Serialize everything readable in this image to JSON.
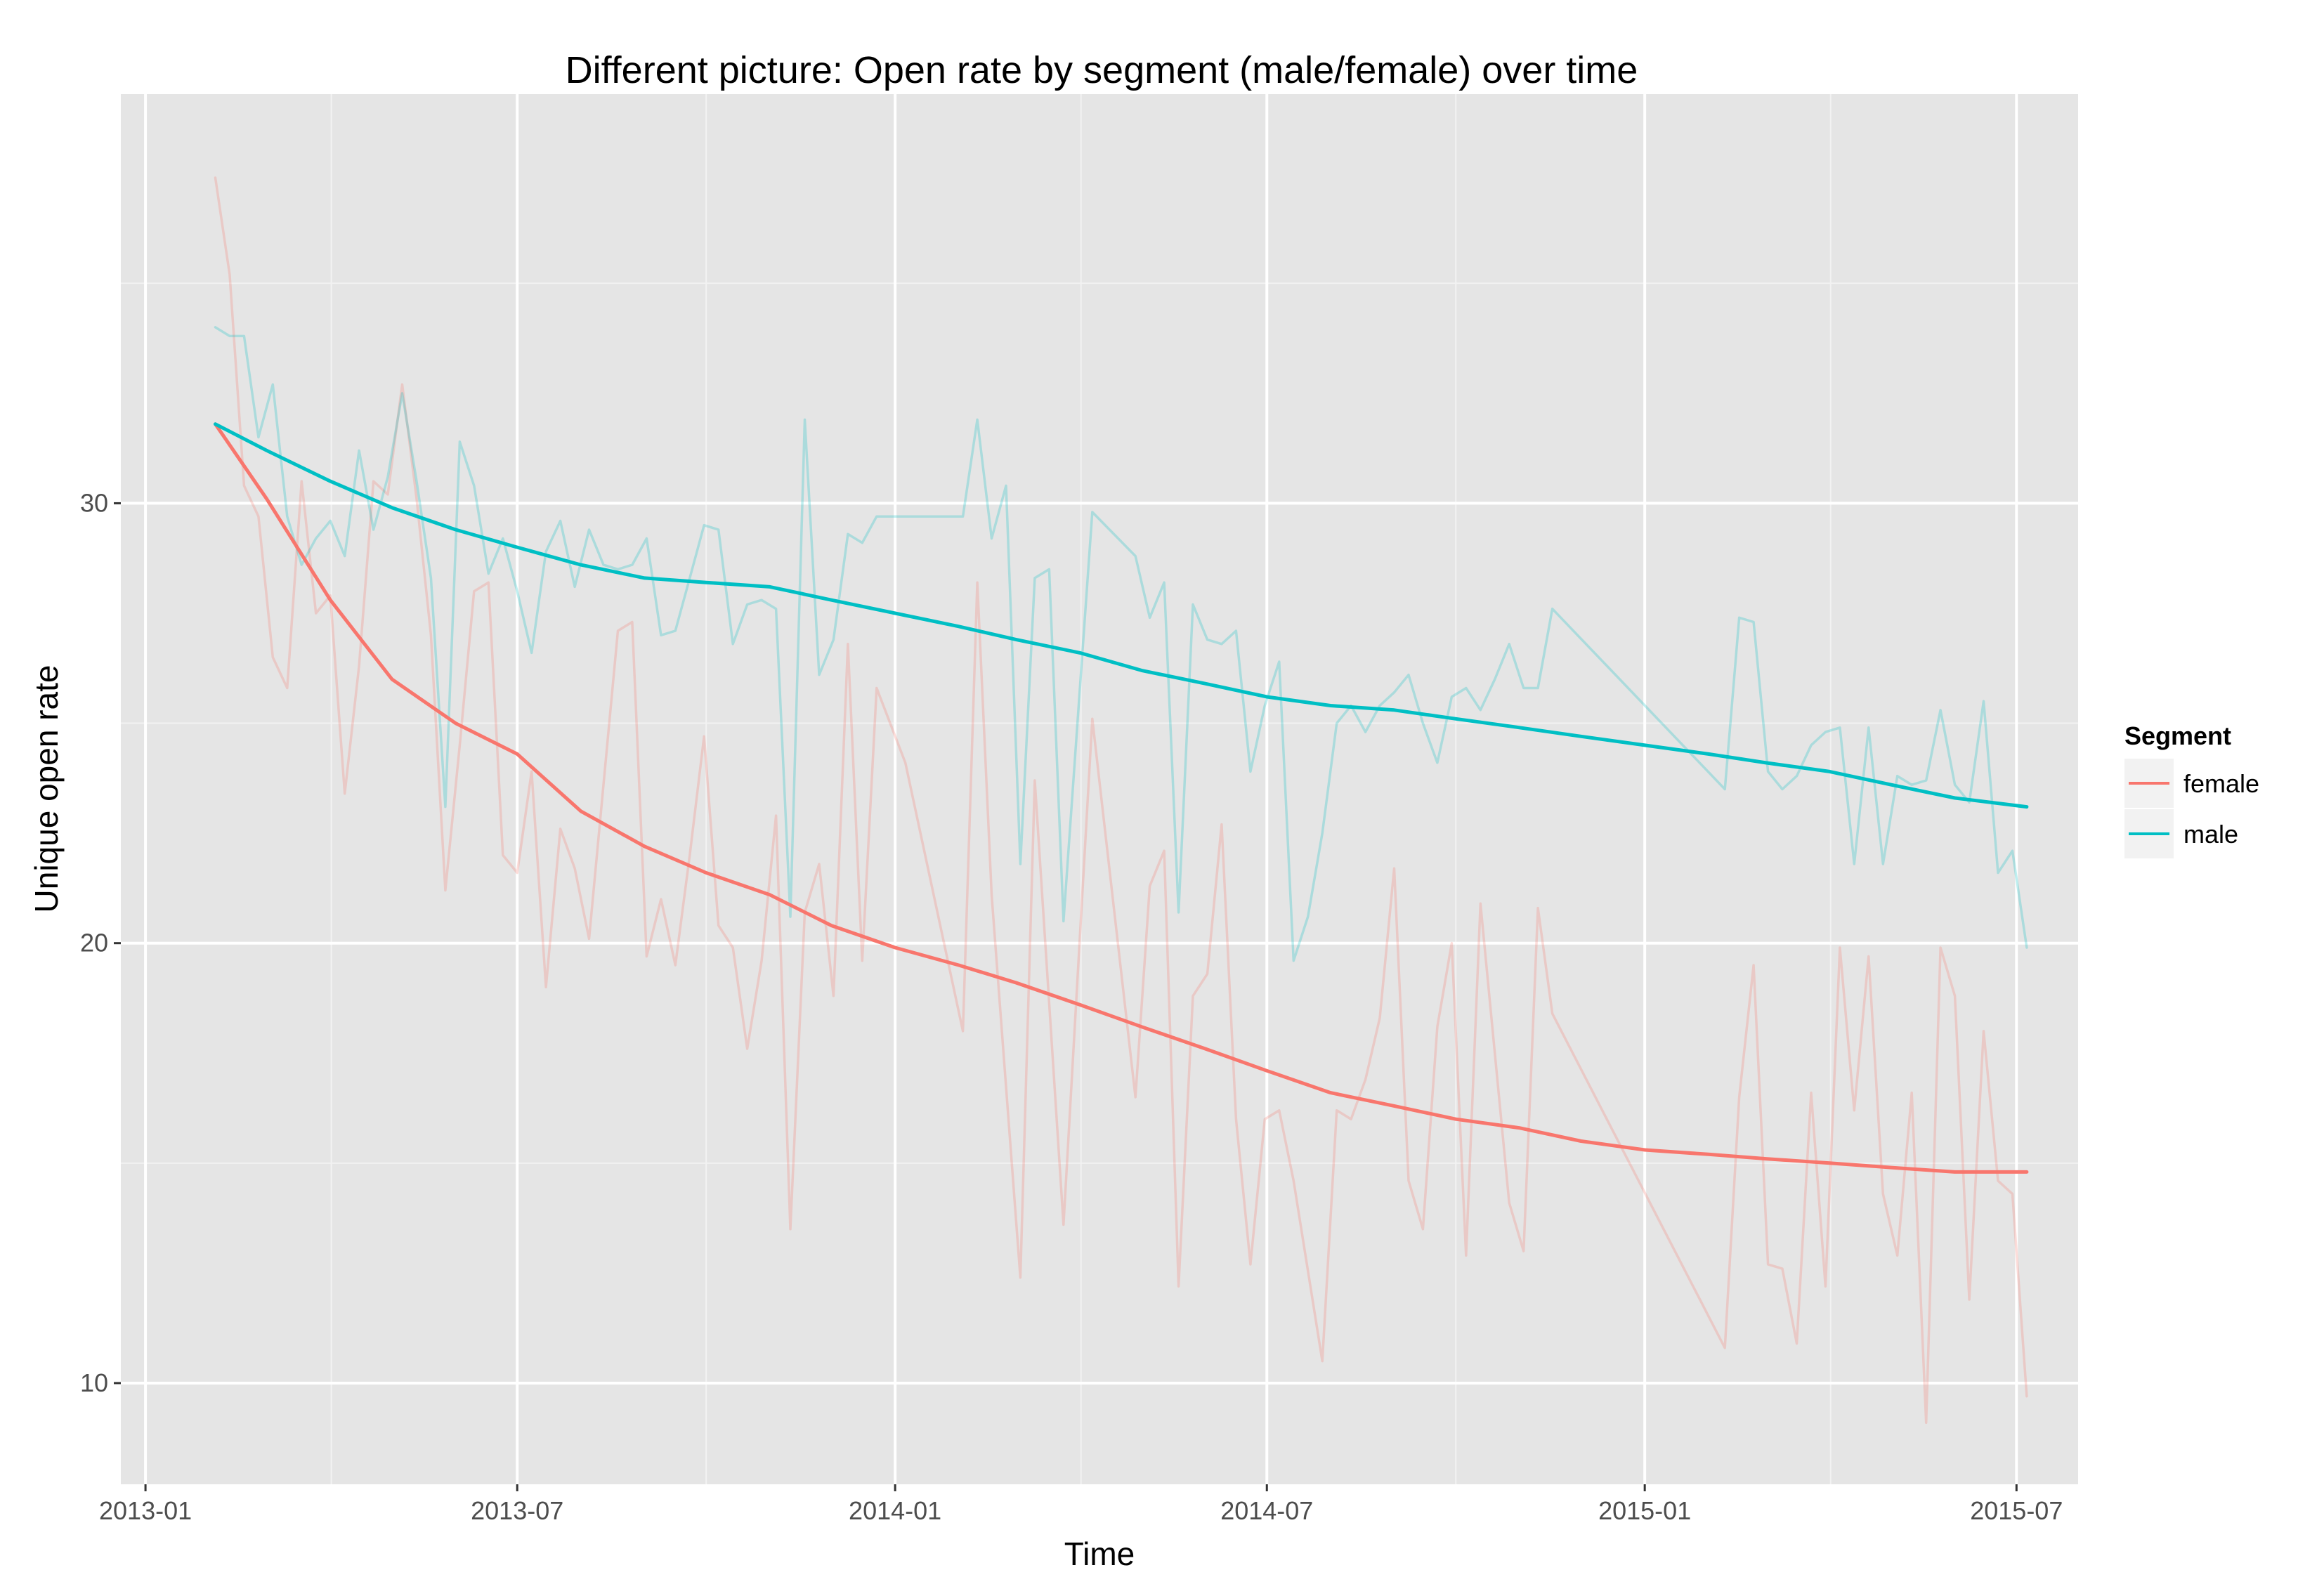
{
  "chart_data": {
    "type": "line",
    "title": "Different picture: Open rate by segment (male/female) over time",
    "xlabel": "Time",
    "ylabel": "Unique open rate",
    "x_ticks": [
      "2013-01",
      "2013-07",
      "2014-01",
      "2014-07",
      "2015-01",
      "2015-07"
    ],
    "y_ticks": [
      10,
      20,
      30
    ],
    "xlim": [
      "2012-12-20",
      "2015-07-31"
    ],
    "ylim": [
      7.7,
      39.3
    ],
    "grid": true,
    "legend": {
      "title": "Segment",
      "position": "right",
      "entries": [
        "female",
        "male"
      ]
    },
    "colors": {
      "female": "#F8766D",
      "male": "#00BFC4",
      "panel_bg": "#E5E5E5",
      "grid_major": "#FFFFFF",
      "grid_minor": "#F2F2F2"
    },
    "series": [
      {
        "name": "female",
        "kind": "raw",
        "points": [
          [
            "2013-02-04",
            37.4
          ],
          [
            "2013-02-11",
            35.2
          ],
          [
            "2013-02-18",
            30.4
          ],
          [
            "2013-02-25",
            29.7
          ],
          [
            "2013-03-04",
            26.5
          ],
          [
            "2013-03-11",
            25.8
          ],
          [
            "2013-03-18",
            30.5
          ],
          [
            "2013-03-25",
            27.5
          ],
          [
            "2013-04-01",
            27.9
          ],
          [
            "2013-04-08",
            23.4
          ],
          [
            "2013-04-15",
            26.3
          ],
          [
            "2013-04-22",
            30.5
          ],
          [
            "2013-04-29",
            30.2
          ],
          [
            "2013-05-06",
            32.7
          ],
          [
            "2013-05-13",
            30.1
          ],
          [
            "2013-05-20",
            27.0
          ],
          [
            "2013-05-27",
            21.2
          ],
          [
            "2013-06-03",
            24.5
          ],
          [
            "2013-06-10",
            28.0
          ],
          [
            "2013-06-17",
            28.2
          ],
          [
            "2013-06-24",
            22.0
          ],
          [
            "2013-07-01",
            21.6
          ],
          [
            "2013-07-08",
            23.9
          ],
          [
            "2013-07-15",
            19.0
          ],
          [
            "2013-07-22",
            22.6
          ],
          [
            "2013-07-29",
            21.7
          ],
          [
            "2013-08-05",
            20.1
          ],
          [
            "2013-08-12",
            23.6
          ],
          [
            "2013-08-19",
            27.1
          ],
          [
            "2013-08-26",
            27.3
          ],
          [
            "2013-09-02",
            19.7
          ],
          [
            "2013-09-09",
            21.0
          ],
          [
            "2013-09-16",
            19.5
          ],
          [
            "2013-09-23",
            22.0
          ],
          [
            "2013-09-30",
            24.7
          ],
          [
            "2013-10-07",
            20.4
          ],
          [
            "2013-10-14",
            19.9
          ],
          [
            "2013-10-21",
            17.6
          ],
          [
            "2013-10-28",
            19.6
          ],
          [
            "2013-11-04",
            22.9
          ],
          [
            "2013-11-11",
            13.5
          ],
          [
            "2013-11-18",
            20.7
          ],
          [
            "2013-11-25",
            21.8
          ],
          [
            "2013-12-02",
            18.8
          ],
          [
            "2013-12-09",
            26.8
          ],
          [
            "2013-12-16",
            19.6
          ],
          [
            "2013-12-23",
            25.8
          ],
          [
            "2014-01-06",
            24.1
          ],
          [
            "2014-02-03",
            18.0
          ],
          [
            "2014-02-10",
            28.2
          ],
          [
            "2014-02-17",
            21.1
          ],
          [
            "2014-03-03",
            12.4
          ],
          [
            "2014-03-10",
            23.7
          ],
          [
            "2014-03-24",
            13.6
          ],
          [
            "2014-04-07",
            25.1
          ],
          [
            "2014-04-28",
            16.5
          ],
          [
            "2014-05-05",
            21.3
          ],
          [
            "2014-05-12",
            22.1
          ],
          [
            "2014-05-19",
            12.2
          ],
          [
            "2014-05-26",
            18.8
          ],
          [
            "2014-06-02",
            19.3
          ],
          [
            "2014-06-09",
            22.7
          ],
          [
            "2014-06-16",
            16.0
          ],
          [
            "2014-06-23",
            12.7
          ],
          [
            "2014-06-30",
            16.0
          ],
          [
            "2014-07-07",
            16.2
          ],
          [
            "2014-07-14",
            14.6
          ],
          [
            "2014-07-28",
            10.5
          ],
          [
            "2014-08-04",
            16.2
          ],
          [
            "2014-08-11",
            16.0
          ],
          [
            "2014-08-18",
            16.9
          ],
          [
            "2014-08-25",
            18.3
          ],
          [
            "2014-09-01",
            21.7
          ],
          [
            "2014-09-08",
            14.6
          ],
          [
            "2014-09-15",
            13.5
          ],
          [
            "2014-09-22",
            18.1
          ],
          [
            "2014-09-29",
            20.0
          ],
          [
            "2014-10-06",
            12.9
          ],
          [
            "2014-10-13",
            20.9
          ],
          [
            "2014-10-27",
            14.1
          ],
          [
            "2014-11-03",
            13.0
          ],
          [
            "2014-11-10",
            20.8
          ],
          [
            "2014-11-17",
            18.4
          ],
          [
            "2015-02-09",
            10.8
          ],
          [
            "2015-02-16",
            16.5
          ],
          [
            "2015-02-23",
            19.5
          ],
          [
            "2015-03-02",
            12.7
          ],
          [
            "2015-03-09",
            12.6
          ],
          [
            "2015-03-16",
            10.9
          ],
          [
            "2015-03-23",
            16.6
          ],
          [
            "2015-03-30",
            12.2
          ],
          [
            "2015-04-06",
            19.9
          ],
          [
            "2015-04-13",
            16.2
          ],
          [
            "2015-04-20",
            19.7
          ],
          [
            "2015-04-27",
            14.3
          ],
          [
            "2015-05-04",
            12.9
          ],
          [
            "2015-05-11",
            16.6
          ],
          [
            "2015-05-18",
            9.1
          ],
          [
            "2015-05-25",
            19.9
          ],
          [
            "2015-06-01",
            18.8
          ],
          [
            "2015-06-08",
            11.9
          ],
          [
            "2015-06-15",
            18.0
          ],
          [
            "2015-06-22",
            14.6
          ],
          [
            "2015-06-29",
            14.3
          ],
          [
            "2015-07-06",
            9.7
          ]
        ]
      },
      {
        "name": "male",
        "kind": "raw",
        "points": [
          [
            "2013-02-04",
            34.0
          ],
          [
            "2013-02-11",
            33.8
          ],
          [
            "2013-02-18",
            33.8
          ],
          [
            "2013-02-25",
            31.5
          ],
          [
            "2013-03-04",
            32.7
          ],
          [
            "2013-03-11",
            29.7
          ],
          [
            "2013-03-18",
            28.6
          ],
          [
            "2013-03-25",
            29.2
          ],
          [
            "2013-04-01",
            29.6
          ],
          [
            "2013-04-08",
            28.8
          ],
          [
            "2013-04-15",
            31.2
          ],
          [
            "2013-04-22",
            29.4
          ],
          [
            "2013-04-29",
            30.6
          ],
          [
            "2013-05-06",
            32.5
          ],
          [
            "2013-05-13",
            30.5
          ],
          [
            "2013-05-20",
            28.3
          ],
          [
            "2013-05-27",
            23.1
          ],
          [
            "2013-06-03",
            31.4
          ],
          [
            "2013-06-10",
            30.4
          ],
          [
            "2013-06-17",
            28.4
          ],
          [
            "2013-06-24",
            29.2
          ],
          [
            "2013-07-01",
            28.0
          ],
          [
            "2013-07-08",
            26.6
          ],
          [
            "2013-07-15",
            28.9
          ],
          [
            "2013-07-22",
            29.6
          ],
          [
            "2013-07-29",
            28.1
          ],
          [
            "2013-08-05",
            29.4
          ],
          [
            "2013-08-12",
            28.6
          ],
          [
            "2013-08-19",
            28.5
          ],
          [
            "2013-08-26",
            28.6
          ],
          [
            "2013-09-02",
            29.2
          ],
          [
            "2013-09-09",
            27.0
          ],
          [
            "2013-09-16",
            27.1
          ],
          [
            "2013-09-23",
            28.3
          ],
          [
            "2013-09-30",
            29.5
          ],
          [
            "2013-10-07",
            29.4
          ],
          [
            "2013-10-14",
            26.8
          ],
          [
            "2013-10-21",
            27.7
          ],
          [
            "2013-10-28",
            27.8
          ],
          [
            "2013-11-04",
            27.6
          ],
          [
            "2013-11-11",
            20.6
          ],
          [
            "2013-11-18",
            31.9
          ],
          [
            "2013-11-25",
            26.1
          ],
          [
            "2013-12-02",
            26.9
          ],
          [
            "2013-12-09",
            29.3
          ],
          [
            "2013-12-16",
            29.1
          ],
          [
            "2013-12-23",
            29.7
          ],
          [
            "2014-02-03",
            29.7
          ],
          [
            "2014-02-10",
            31.9
          ],
          [
            "2014-02-17",
            29.2
          ],
          [
            "2014-02-24",
            30.4
          ],
          [
            "2014-03-03",
            21.8
          ],
          [
            "2014-03-10",
            28.3
          ],
          [
            "2014-03-17",
            28.5
          ],
          [
            "2014-03-24",
            20.5
          ],
          [
            "2014-04-07",
            29.8
          ],
          [
            "2014-04-28",
            28.8
          ],
          [
            "2014-05-05",
            27.4
          ],
          [
            "2014-05-12",
            28.2
          ],
          [
            "2014-05-19",
            20.7
          ],
          [
            "2014-05-26",
            27.7
          ],
          [
            "2014-06-02",
            26.9
          ],
          [
            "2014-06-09",
            26.8
          ],
          [
            "2014-06-16",
            27.1
          ],
          [
            "2014-06-23",
            23.9
          ],
          [
            "2014-06-30",
            25.4
          ],
          [
            "2014-07-07",
            26.4
          ],
          [
            "2014-07-14",
            19.6
          ],
          [
            "2014-07-21",
            20.6
          ],
          [
            "2014-07-28",
            22.5
          ],
          [
            "2014-08-04",
            25.0
          ],
          [
            "2014-08-11",
            25.4
          ],
          [
            "2014-08-18",
            24.8
          ],
          [
            "2014-08-25",
            25.4
          ],
          [
            "2014-09-01",
            25.7
          ],
          [
            "2014-09-08",
            26.1
          ],
          [
            "2014-09-15",
            25.0
          ],
          [
            "2014-09-22",
            24.1
          ],
          [
            "2014-09-29",
            25.6
          ],
          [
            "2014-10-06",
            25.8
          ],
          [
            "2014-10-13",
            25.3
          ],
          [
            "2014-10-20",
            26.0
          ],
          [
            "2014-10-27",
            26.8
          ],
          [
            "2014-11-03",
            25.8
          ],
          [
            "2014-11-10",
            25.8
          ],
          [
            "2014-11-17",
            27.6
          ],
          [
            "2015-02-09",
            23.5
          ],
          [
            "2015-02-16",
            27.4
          ],
          [
            "2015-02-23",
            27.3
          ],
          [
            "2015-03-02",
            23.9
          ],
          [
            "2015-03-09",
            23.5
          ],
          [
            "2015-03-16",
            23.8
          ],
          [
            "2015-03-23",
            24.5
          ],
          [
            "2015-03-30",
            24.8
          ],
          [
            "2015-04-06",
            24.9
          ],
          [
            "2015-04-13",
            21.8
          ],
          [
            "2015-04-20",
            24.9
          ],
          [
            "2015-04-27",
            21.8
          ],
          [
            "2015-05-04",
            23.8
          ],
          [
            "2015-05-11",
            23.6
          ],
          [
            "2015-05-18",
            23.7
          ],
          [
            "2015-05-25",
            25.3
          ],
          [
            "2015-06-01",
            23.6
          ],
          [
            "2015-06-08",
            23.2
          ],
          [
            "2015-06-15",
            25.5
          ],
          [
            "2015-06-22",
            21.6
          ],
          [
            "2015-06-29",
            22.1
          ],
          [
            "2015-07-06",
            19.9
          ]
        ]
      },
      {
        "name": "female",
        "kind": "smooth",
        "points": [
          [
            "2013-02-04",
            31.8
          ],
          [
            "2013-03-01",
            30.1
          ],
          [
            "2013-04-01",
            27.8
          ],
          [
            "2013-05-01",
            26.0
          ],
          [
            "2013-06-01",
            25.0
          ],
          [
            "2013-07-01",
            24.3
          ],
          [
            "2013-08-01",
            23.0
          ],
          [
            "2013-09-01",
            22.2
          ],
          [
            "2013-10-01",
            21.6
          ],
          [
            "2013-11-01",
            21.1
          ],
          [
            "2013-12-01",
            20.4
          ],
          [
            "2014-01-01",
            19.9
          ],
          [
            "2014-02-01",
            19.5
          ],
          [
            "2014-03-01",
            19.1
          ],
          [
            "2014-04-01",
            18.6
          ],
          [
            "2014-05-01",
            18.1
          ],
          [
            "2014-06-01",
            17.6
          ],
          [
            "2014-07-01",
            17.1
          ],
          [
            "2014-08-01",
            16.6
          ],
          [
            "2014-09-01",
            16.3
          ],
          [
            "2014-10-01",
            16.0
          ],
          [
            "2014-11-01",
            15.8
          ],
          [
            "2014-12-01",
            15.5
          ],
          [
            "2015-01-01",
            15.3
          ],
          [
            "2015-02-01",
            15.2
          ],
          [
            "2015-03-01",
            15.1
          ],
          [
            "2015-04-01",
            15.0
          ],
          [
            "2015-05-01",
            14.9
          ],
          [
            "2015-06-01",
            14.8
          ],
          [
            "2015-07-06",
            14.8
          ]
        ]
      },
      {
        "name": "male",
        "kind": "smooth",
        "points": [
          [
            "2013-02-04",
            31.8
          ],
          [
            "2013-03-01",
            31.2
          ],
          [
            "2013-04-01",
            30.5
          ],
          [
            "2013-05-01",
            29.9
          ],
          [
            "2013-06-01",
            29.4
          ],
          [
            "2013-07-01",
            29.0
          ],
          [
            "2013-08-01",
            28.6
          ],
          [
            "2013-09-01",
            28.3
          ],
          [
            "2013-10-01",
            28.2
          ],
          [
            "2013-11-01",
            28.1
          ],
          [
            "2013-12-01",
            27.8
          ],
          [
            "2014-01-01",
            27.5
          ],
          [
            "2014-02-01",
            27.2
          ],
          [
            "2014-03-01",
            26.9
          ],
          [
            "2014-04-01",
            26.6
          ],
          [
            "2014-05-01",
            26.2
          ],
          [
            "2014-06-01",
            25.9
          ],
          [
            "2014-07-01",
            25.6
          ],
          [
            "2014-08-01",
            25.4
          ],
          [
            "2014-09-01",
            25.3
          ],
          [
            "2014-10-01",
            25.1
          ],
          [
            "2014-11-01",
            24.9
          ],
          [
            "2014-12-01",
            24.7
          ],
          [
            "2015-01-01",
            24.5
          ],
          [
            "2015-02-01",
            24.3
          ],
          [
            "2015-03-01",
            24.1
          ],
          [
            "2015-04-01",
            23.9
          ],
          [
            "2015-05-01",
            23.6
          ],
          [
            "2015-06-01",
            23.3
          ],
          [
            "2015-07-06",
            23.1
          ]
        ]
      }
    ]
  }
}
